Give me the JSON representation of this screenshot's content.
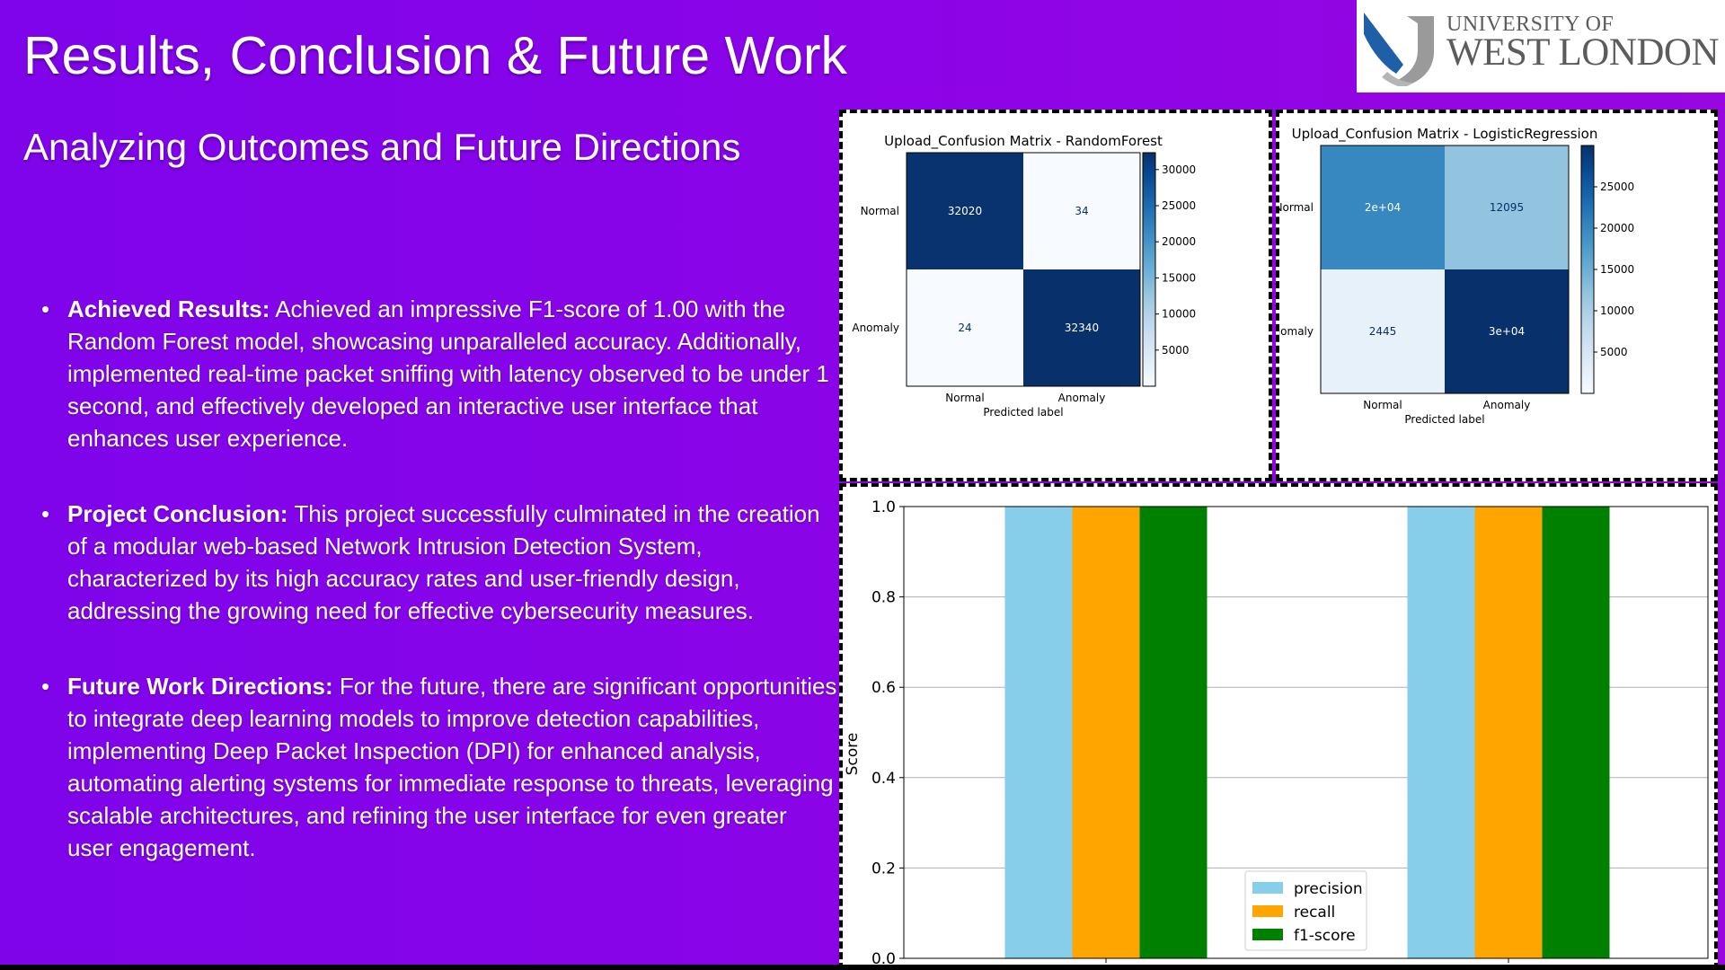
{
  "slide": {
    "title": "Results, Conclusion & Future Work",
    "subtitle": "Analyzing Outcomes and Future Directions",
    "bullet_char": "•",
    "bullets": [
      {
        "heading": "Achieved Results:",
        "text": " Achieved an impressive F1-score of 1.00 with the Random Forest model, showcasing unparalleled accuracy. Additionally, implemented real-time packet sniffing with latency observed to be under 1 second, and effectively developed an interactive user interface that enhances user experience."
      },
      {
        "heading": "Project Conclusion:",
        "text": " This project successfully culminated in the creation of a modular web-based Network Intrusion Detection System, characterized by its high accuracy rates and user-friendly design, addressing the growing need for effective cybersecurity measures."
      },
      {
        "heading": "Future Work Directions:",
        "text": " For the future, there are significant opportunities to integrate deep learning models to improve detection capabilities, implementing Deep Packet Inspection (DPI) for enhanced analysis, automating alerting systems for immediate response to threats, leveraging scalable architectures, and refining the user interface for even greater user engagement."
      }
    ]
  },
  "logo": {
    "line1": "UNIVERSITY OF",
    "line2": "WEST LONDON",
    "colors": [
      "#1f5fa8",
      "#9a9a9a"
    ]
  },
  "chart_data": [
    {
      "type": "heatmap",
      "title": "Upload_Confusion Matrix - RandomForest",
      "xlabel": "Predicted label",
      "ylabel": "",
      "x_categories": [
        "Normal",
        "Anomaly"
      ],
      "y_categories": [
        "Normal",
        "Anomaly"
      ],
      "values": [
        [
          32020,
          34
        ],
        [
          24,
          32340
        ]
      ],
      "cell_labels": [
        [
          "32020",
          "34"
        ],
        [
          "24",
          "32340"
        ]
      ],
      "colorbar_ticks": [
        5000,
        10000,
        15000,
        20000,
        25000,
        30000
      ],
      "colorbar_range": [
        0,
        32340
      ],
      "colormap": "Blues"
    },
    {
      "type": "heatmap",
      "title": "Upload_Confusion Matrix - LogisticRegression",
      "xlabel": "Predicted label",
      "ylabel": "",
      "x_categories": [
        "Normal",
        "Anomaly"
      ],
      "y_categories": [
        "Normal",
        "Anomaly"
      ],
      "values": [
        [
          20000,
          12095
        ],
        [
          2445,
          30000
        ]
      ],
      "cell_labels": [
        [
          "2e+04",
          "12095"
        ],
        [
          "2445",
          "3e+04"
        ]
      ],
      "colorbar_ticks": [
        5000,
        10000,
        15000,
        20000,
        25000
      ],
      "colorbar_range": [
        0,
        30000
      ],
      "colormap": "Blues"
    },
    {
      "type": "bar",
      "ylabel": "Score",
      "ylim": [
        0,
        1
      ],
      "yticks": [
        "0.0",
        "0.2",
        "0.4",
        "0.6",
        "0.8",
        "1.0"
      ],
      "grid": true,
      "legend_position": "bottom-center",
      "groups": 2,
      "series": [
        {
          "name": "precision",
          "values": [
            1.0,
            1.0
          ],
          "color": "#87ceeb"
        },
        {
          "name": "recall",
          "values": [
            1.0,
            1.0
          ],
          "color": "#ffa500"
        },
        {
          "name": "f1-score",
          "values": [
            1.0,
            1.0
          ],
          "color": "#008000"
        }
      ]
    }
  ]
}
